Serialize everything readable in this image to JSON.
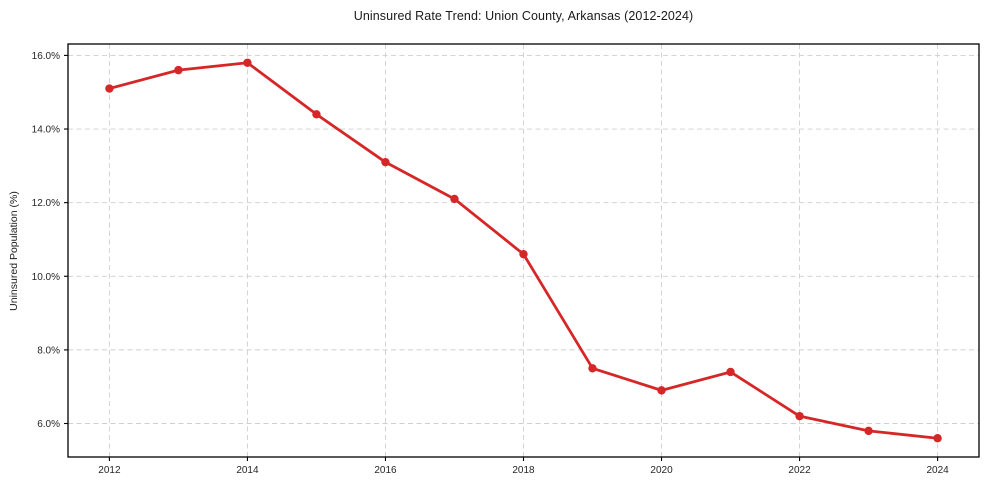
{
  "chart_data": {
    "type": "line",
    "title": "Uninsured Rate Trend: Union County, Arkansas (2012-2024)",
    "xlabel": "",
    "ylabel": "Uninsured Population (%)",
    "x": [
      2012,
      2013,
      2014,
      2015,
      2016,
      2017,
      2018,
      2019,
      2020,
      2021,
      2022,
      2023,
      2024
    ],
    "values": [
      15.1,
      15.6,
      15.8,
      14.4,
      13.1,
      12.1,
      10.6,
      7.5,
      6.9,
      7.4,
      6.2,
      5.8,
      5.6
    ],
    "unit": "%",
    "x_ticks": [
      2012,
      2014,
      2016,
      2018,
      2020,
      2022,
      2024
    ],
    "x_tick_labels": [
      "2012",
      "2014",
      "2016",
      "2018",
      "2020",
      "2022",
      "2024"
    ],
    "y_ticks": [
      6,
      8,
      10,
      12,
      14,
      16
    ],
    "y_tick_labels": [
      "6.0%",
      "8.0%",
      "10.0%",
      "12.0%",
      "14.0%",
      "16.0%"
    ],
    "xlim": [
      2011.4,
      2024.6
    ],
    "ylim": [
      5.09,
      16.31
    ],
    "grid": true,
    "grid_style": "dashed",
    "legend_position": "none",
    "line_color": "#d62728",
    "marker": "circle",
    "grid_color": "#cfcfcf",
    "frame_color": "#000000",
    "tick_color": "#262626",
    "background": "#ffffff"
  }
}
